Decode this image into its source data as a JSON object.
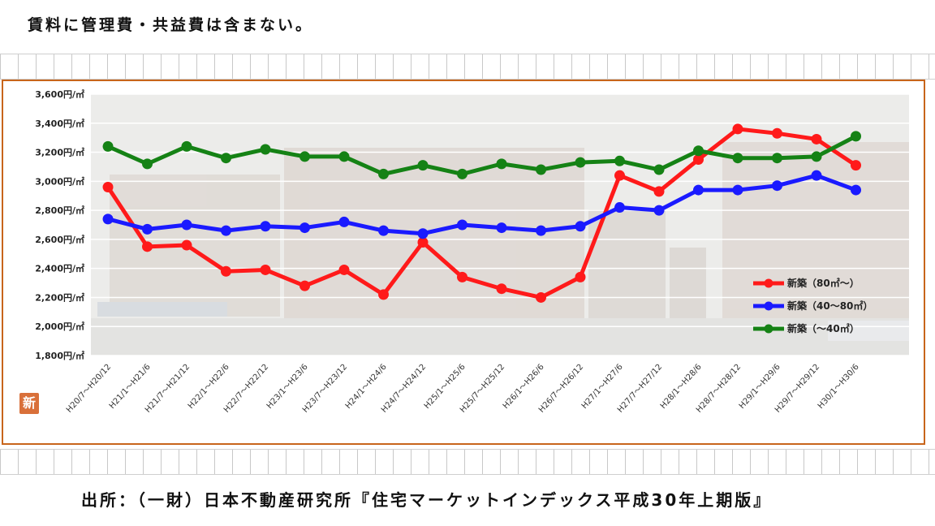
{
  "note": "賃料に管理費・共益費は含まない。",
  "source": "出所：（一財）日本不動産研究所『住宅マーケットインデックス平成30年上期版』",
  "badge": "新",
  "chart_data": {
    "type": "line",
    "x": [
      "H20/7～H20/12",
      "H21/1～H21/6",
      "H21/7～H21/12",
      "H22/1～H22/6",
      "H22/7～H22/12",
      "H23/1～H23/6",
      "H23/7～H23/12",
      "H24/1～H24/6",
      "H24/7～H24/12",
      "H25/1～H25/6",
      "H25/7～H25/12",
      "H26/1～H26/6",
      "H26/7～H26/12",
      "H27/1～H27/6",
      "H27/7～H27/12",
      "H28/1～H28/6",
      "H28/7～H28/12",
      "H29/1～H29/6",
      "H29/7～H29/12",
      "H30/1～H30/6"
    ],
    "series": [
      {
        "name": "新築（80㎡～）",
        "color": "#ff1a1a",
        "values": [
          2960,
          2550,
          2560,
          2380,
          2390,
          2280,
          2390,
          2220,
          2580,
          2340,
          2260,
          2200,
          2340,
          3040,
          2930,
          3150,
          3360,
          3330,
          3290,
          3110
        ]
      },
      {
        "name": "新築（40～80㎡）",
        "color": "#1a1aff",
        "values": [
          2740,
          2670,
          2700,
          2660,
          2690,
          2680,
          2720,
          2660,
          2640,
          2700,
          2680,
          2660,
          2690,
          2820,
          2800,
          2940,
          2940,
          2970,
          3040,
          2940
        ]
      },
      {
        "name": "新築（～40㎡）",
        "color": "#158215",
        "values": [
          3240,
          3120,
          3240,
          3160,
          3220,
          3170,
          3170,
          3050,
          3110,
          3050,
          3120,
          3080,
          3130,
          3140,
          3080,
          3210,
          3160,
          3160,
          3170,
          3310
        ]
      }
    ],
    "point_series_lengths_note": "",
    "ylim": [
      1800,
      3600
    ],
    "yticks": [
      "1,800円/㎡",
      "2,000円/㎡",
      "2,200円/㎡",
      "2,400円/㎡",
      "2,600円/㎡",
      "2,800円/㎡",
      "3,000円/㎡",
      "3,200円/㎡",
      "3,400円/㎡",
      "3,600円/㎡"
    ],
    "grid": true,
    "legend": "right"
  }
}
